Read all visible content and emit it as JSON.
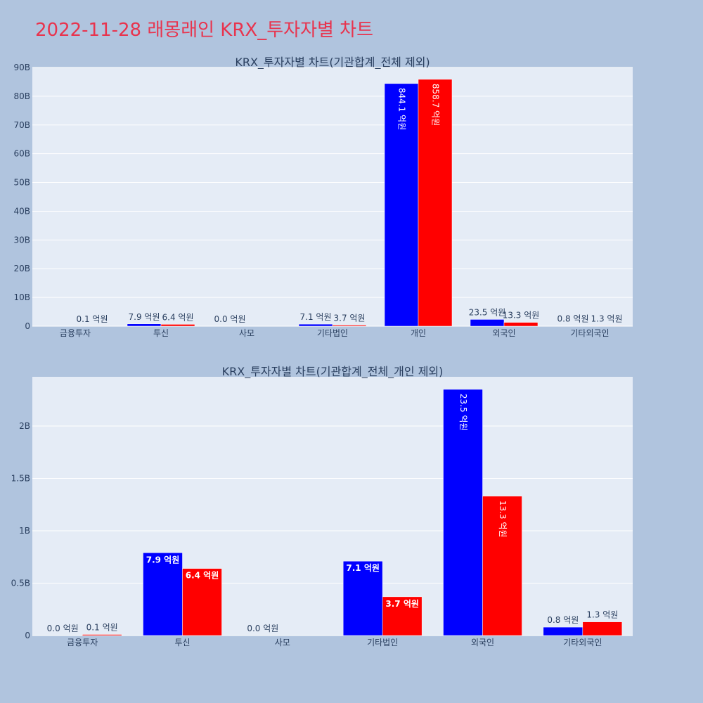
{
  "page_title": "2022-11-28 래몽래인 KRX_투자자별 차트",
  "colors": {
    "background": "#b0c4de",
    "plot_bg": "#e5ecf6",
    "title": "#e8344e",
    "series_buy": "#0000ff",
    "series_sell": "#ff0000",
    "text": "#2a3f5f"
  },
  "chart_data": [
    {
      "type": "bar",
      "title": "KRX_투자자별 차트(기관합계_전체 제외)",
      "categories": [
        "금융투자",
        "투신",
        "사모",
        "기타법인",
        "개인",
        "외국인",
        "기타외국인"
      ],
      "series": [
        {
          "color": "#0000ff",
          "values": [
            0,
            790000000,
            0,
            710000000,
            84410000000,
            2350000000,
            80000000
          ],
          "labels": [
            "",
            "7.9 억원",
            "0.0 억원",
            "7.1 억원",
            "844.1 억원",
            "23.5 억원",
            "0.8 억원"
          ]
        },
        {
          "color": "#ff0000",
          "values": [
            10000000,
            640000000,
            0,
            370000000,
            85870000000,
            1330000000,
            130000000
          ],
          "labels": [
            "0.1 억원",
            "6.4 억원",
            "",
            "3.7 억원",
            "858.7 억원",
            "13.3 억원",
            "1.3 억원"
          ]
        }
      ],
      "yticks": [
        0,
        10000000000,
        20000000000,
        30000000000,
        40000000000,
        50000000000,
        60000000000,
        70000000000,
        80000000000,
        90000000000
      ],
      "ytick_labels": [
        "0",
        "10B",
        "20B",
        "30B",
        "40B",
        "50B",
        "60B",
        "70B",
        "80B",
        "90B"
      ],
      "ylim": [
        0,
        90000000000
      ],
      "grid": true
    },
    {
      "type": "bar",
      "title": "KRX_투자자별 차트(기관합계_전체_개인 제외)",
      "categories": [
        "금융투자",
        "투신",
        "사모",
        "기타법인",
        "외국인",
        "기타외국인"
      ],
      "series": [
        {
          "color": "#0000ff",
          "values": [
            0,
            790000000,
            0,
            710000000,
            2350000000,
            80000000
          ],
          "labels": [
            "0.0 억원",
            "7.9 억원",
            "0.0 억원",
            "7.1 억원",
            "23.5 억원",
            "0.8 억원"
          ]
        },
        {
          "color": "#ff0000",
          "values": [
            10000000,
            640000000,
            0,
            370000000,
            1330000000,
            130000000
          ],
          "labels": [
            "0.1 억원",
            "6.4 억원",
            "",
            "3.7 억원",
            "13.3 억원",
            "1.3 억원"
          ]
        }
      ],
      "yticks": [
        0,
        500000000,
        1000000000,
        1500000000,
        2000000000
      ],
      "ytick_labels": [
        "0",
        "0.5B",
        "1B",
        "1.5B",
        "2B"
      ],
      "ylim": [
        0,
        2470000000
      ],
      "grid": true
    }
  ]
}
